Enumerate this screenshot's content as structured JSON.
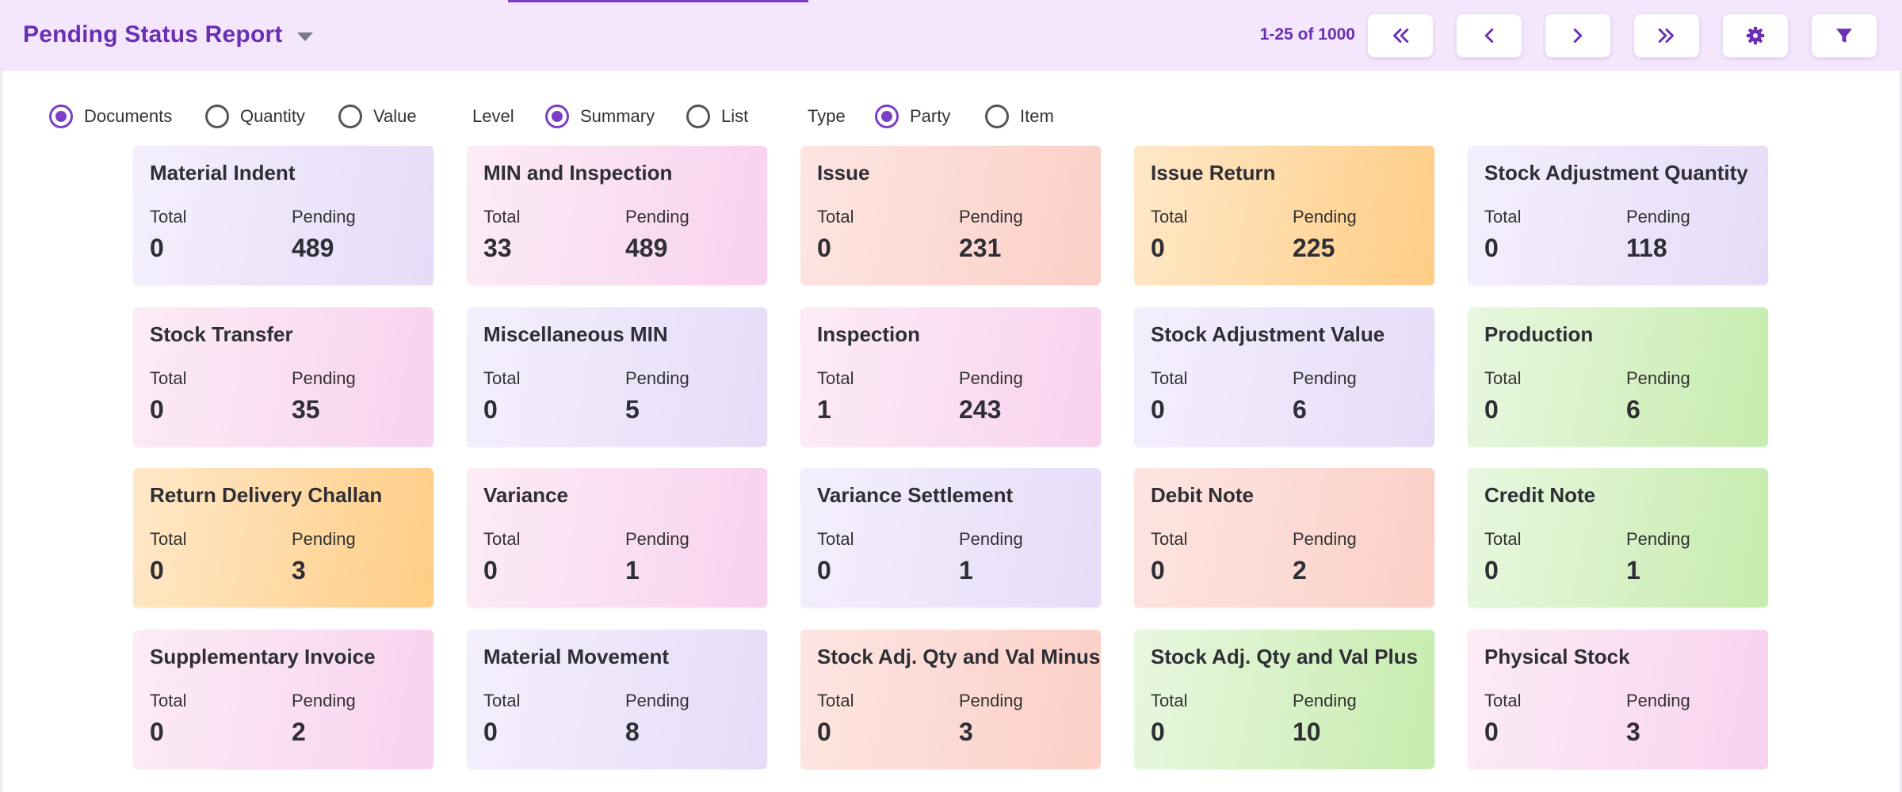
{
  "header": {
    "title": "Pending Status Report",
    "pager_info": "1-25 of 1000"
  },
  "colors": {
    "accent": "#7b3fc4",
    "header_bg": "#f3e6fd",
    "title": "#6b2fb3"
  },
  "icons": {
    "first": "double-chevron-left-icon",
    "prev": "chevron-left-icon",
    "next": "chevron-right-icon",
    "last": "double-chevron-right-icon",
    "settings": "gear-icon",
    "filter": "funnel-icon"
  },
  "filters": {
    "measure": [
      {
        "label": "Documents",
        "checked": true
      },
      {
        "label": "Quantity",
        "checked": false
      },
      {
        "label": "Value",
        "checked": false
      }
    ],
    "level_label": "Level",
    "level": [
      {
        "label": "Summary",
        "checked": true
      },
      {
        "label": "List",
        "checked": false
      }
    ],
    "type_label": "Type",
    "type": [
      {
        "label": "Party",
        "checked": true
      },
      {
        "label": "Item",
        "checked": false
      }
    ]
  },
  "card_labels": {
    "total": "Total",
    "pending": "Pending"
  },
  "cards": [
    {
      "name": "Material Indent",
      "total": "0",
      "pending": "489",
      "theme": "purple"
    },
    {
      "name": "MIN and Inspection",
      "total": "33",
      "pending": "489",
      "theme": "pink"
    },
    {
      "name": "Issue",
      "total": "0",
      "pending": "231",
      "theme": "salmon"
    },
    {
      "name": "Issue Return",
      "total": "0",
      "pending": "225",
      "theme": "orange"
    },
    {
      "name": "Stock Adjustment Quantity",
      "total": "0",
      "pending": "118",
      "theme": "purple"
    },
    {
      "name": "Stock Transfer",
      "total": "0",
      "pending": "35",
      "theme": "pink"
    },
    {
      "name": "Miscellaneous MIN",
      "total": "0",
      "pending": "5",
      "theme": "purple"
    },
    {
      "name": "Inspection",
      "total": "1",
      "pending": "243",
      "theme": "pink"
    },
    {
      "name": "Stock Adjustment Value",
      "total": "0",
      "pending": "6",
      "theme": "purple"
    },
    {
      "name": "Production",
      "total": "0",
      "pending": "6",
      "theme": "green"
    },
    {
      "name": "Return Delivery Challan",
      "total": "0",
      "pending": "3",
      "theme": "orange"
    },
    {
      "name": "Variance",
      "total": "0",
      "pending": "1",
      "theme": "pink"
    },
    {
      "name": "Variance Settlement",
      "total": "0",
      "pending": "1",
      "theme": "purple"
    },
    {
      "name": "Debit Note",
      "total": "0",
      "pending": "2",
      "theme": "salmon"
    },
    {
      "name": "Credit Note",
      "total": "0",
      "pending": "1",
      "theme": "green"
    },
    {
      "name": "Supplementary Invoice",
      "total": "0",
      "pending": "2",
      "theme": "pink"
    },
    {
      "name": "Material Movement",
      "total": "0",
      "pending": "8",
      "theme": "purple"
    },
    {
      "name": "Stock Adj. Qty and Val Minus",
      "total": "0",
      "pending": "3",
      "theme": "salmon"
    },
    {
      "name": "Stock Adj. Qty and Val Plus",
      "total": "0",
      "pending": "10",
      "theme": "green"
    },
    {
      "name": "Physical Stock",
      "total": "0",
      "pending": "3",
      "theme": "pink"
    }
  ]
}
